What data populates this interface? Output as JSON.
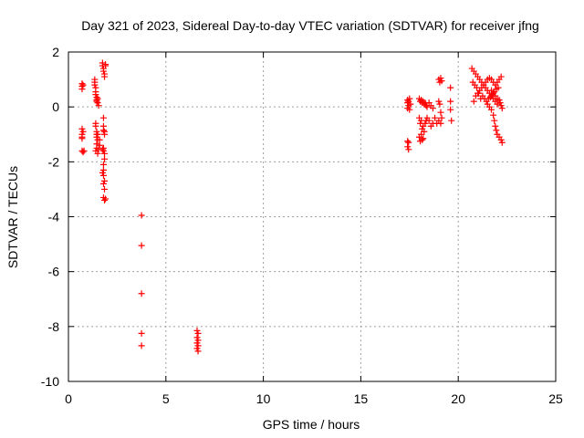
{
  "chart_data": {
    "type": "scatter",
    "title": "Day 321 of 2023, Sidereal Day-to-day VTEC variation (SDTVAR) for receiver jfng",
    "xlabel": "GPS time / hours",
    "ylabel": "SDTVAR / TECUs",
    "xlim": [
      0,
      25
    ],
    "ylim": [
      -10,
      2
    ],
    "xticks": [
      0,
      5,
      10,
      15,
      20,
      25
    ],
    "yticks": [
      -10,
      -8,
      -6,
      -4,
      -2,
      0,
      2
    ],
    "grid": true,
    "marker": "+",
    "color": "#ff0000",
    "series": [
      {
        "name": "SDTVAR",
        "points": [
          [
            0.7,
            0.85
          ],
          [
            0.7,
            0.75
          ],
          [
            0.7,
            0.65
          ],
          [
            0.75,
            0.8
          ],
          [
            0.7,
            -0.8
          ],
          [
            0.7,
            -1.0
          ],
          [
            0.7,
            -1.1
          ],
          [
            0.7,
            -1.15
          ],
          [
            0.75,
            -0.9
          ],
          [
            0.7,
            -1.6
          ],
          [
            0.75,
            -1.65
          ],
          [
            0.8,
            -1.6
          ],
          [
            1.35,
            1.0
          ],
          [
            1.35,
            0.9
          ],
          [
            1.35,
            0.8
          ],
          [
            1.4,
            0.7
          ],
          [
            1.4,
            0.55
          ],
          [
            1.4,
            0.45
          ],
          [
            1.45,
            0.35
          ],
          [
            1.45,
            0.25
          ],
          [
            1.45,
            0.2
          ],
          [
            1.5,
            0.3
          ],
          [
            1.5,
            0.15
          ],
          [
            1.55,
            0.05
          ],
          [
            1.4,
            -0.6
          ],
          [
            1.4,
            -0.7
          ],
          [
            1.45,
            -0.9
          ],
          [
            1.45,
            -1.0
          ],
          [
            1.45,
            -1.1
          ],
          [
            1.5,
            -1.0
          ],
          [
            1.5,
            -1.2
          ],
          [
            1.45,
            -1.35
          ],
          [
            1.45,
            -1.5
          ],
          [
            1.4,
            -1.6
          ],
          [
            1.5,
            -1.7
          ],
          [
            1.55,
            -1.55
          ],
          [
            1.6,
            -1.4
          ],
          [
            1.6,
            -1.2
          ],
          [
            1.75,
            1.6
          ],
          [
            1.75,
            1.5
          ],
          [
            1.8,
            1.4
          ],
          [
            1.8,
            1.3
          ],
          [
            1.85,
            1.2
          ],
          [
            1.85,
            1.1
          ],
          [
            1.9,
            1.5
          ],
          [
            1.9,
            1.55
          ],
          [
            1.8,
            -0.4
          ],
          [
            1.8,
            -0.7
          ],
          [
            1.8,
            -0.85
          ],
          [
            1.85,
            -0.9
          ],
          [
            1.85,
            -1.0
          ],
          [
            1.8,
            -1.5
          ],
          [
            1.75,
            -1.55
          ],
          [
            1.8,
            -1.6
          ],
          [
            1.85,
            -1.7
          ],
          [
            1.85,
            -1.9
          ],
          [
            1.8,
            -2.1
          ],
          [
            1.8,
            -2.3
          ],
          [
            1.75,
            -2.4
          ],
          [
            1.8,
            -2.5
          ],
          [
            1.85,
            -2.7
          ],
          [
            1.8,
            -2.8
          ],
          [
            1.85,
            -3.0
          ],
          [
            1.8,
            -3.3
          ],
          [
            1.85,
            -3.4
          ],
          [
            1.9,
            -3.35
          ],
          [
            3.75,
            -3.95
          ],
          [
            3.75,
            -5.05
          ],
          [
            3.75,
            -6.8
          ],
          [
            3.75,
            -8.25
          ],
          [
            3.75,
            -8.7
          ],
          [
            6.6,
            -8.15
          ],
          [
            6.65,
            -8.25
          ],
          [
            6.6,
            -8.4
          ],
          [
            6.65,
            -8.5
          ],
          [
            6.6,
            -8.6
          ],
          [
            6.65,
            -8.7
          ],
          [
            6.6,
            -8.8
          ],
          [
            6.65,
            -8.9
          ],
          [
            17.4,
            0.25
          ],
          [
            17.4,
            0.15
          ],
          [
            17.45,
            0.05
          ],
          [
            17.4,
            -0.05
          ],
          [
            17.5,
            -0.1
          ],
          [
            17.45,
            0.2
          ],
          [
            17.5,
            0.3
          ],
          [
            17.55,
            0.1
          ],
          [
            17.4,
            -1.25
          ],
          [
            17.45,
            -1.3
          ],
          [
            17.4,
            -1.45
          ],
          [
            17.45,
            -1.55
          ],
          [
            18.0,
            0.3
          ],
          [
            18.05,
            0.2
          ],
          [
            18.1,
            0.25
          ],
          [
            18.15,
            0.15
          ],
          [
            18.2,
            0.2
          ],
          [
            18.25,
            0.1
          ],
          [
            18.3,
            0.15
          ],
          [
            18.35,
            0.05
          ],
          [
            18.4,
            0.0
          ],
          [
            18.5,
            0.15
          ],
          [
            18.6,
            0.05
          ],
          [
            18.7,
            -0.05
          ],
          [
            18.0,
            -0.4
          ],
          [
            18.05,
            -0.6
          ],
          [
            18.1,
            -0.5
          ],
          [
            18.15,
            -0.8
          ],
          [
            18.2,
            -0.7
          ],
          [
            18.25,
            -0.9
          ],
          [
            18.3,
            -0.6
          ],
          [
            18.35,
            -0.5
          ],
          [
            18.4,
            -0.4
          ],
          [
            18.5,
            -0.5
          ],
          [
            18.6,
            -0.7
          ],
          [
            18.7,
            -0.6
          ],
          [
            18.8,
            -0.4
          ],
          [
            18.9,
            -0.6
          ],
          [
            18.0,
            -1.1
          ],
          [
            18.05,
            -1.25
          ],
          [
            18.1,
            -1.0
          ],
          [
            18.15,
            -1.2
          ],
          [
            18.2,
            -1.15
          ],
          [
            19.0,
            1.0
          ],
          [
            19.05,
            0.9
          ],
          [
            19.1,
            1.05
          ],
          [
            19.15,
            0.95
          ],
          [
            19.0,
            0.2
          ],
          [
            19.05,
            0.1
          ],
          [
            19.1,
            -0.2
          ],
          [
            19.15,
            -0.4
          ],
          [
            19.1,
            -0.6
          ],
          [
            19.0,
            -0.5
          ],
          [
            19.6,
            0.7
          ],
          [
            19.6,
            0.2
          ],
          [
            19.6,
            -0.1
          ],
          [
            19.65,
            -0.5
          ],
          [
            20.7,
            1.4
          ],
          [
            20.8,
            1.3
          ],
          [
            20.9,
            1.2
          ],
          [
            21.0,
            1.1
          ],
          [
            21.1,
            1.0
          ],
          [
            21.2,
            0.9
          ],
          [
            21.3,
            0.8
          ],
          [
            21.4,
            0.7
          ],
          [
            21.5,
            0.6
          ],
          [
            21.6,
            0.5
          ],
          [
            21.7,
            0.4
          ],
          [
            21.8,
            0.3
          ],
          [
            21.9,
            0.2
          ],
          [
            22.0,
            0.1
          ],
          [
            20.8,
            0.2
          ],
          [
            20.9,
            0.4
          ],
          [
            21.0,
            0.5
          ],
          [
            21.1,
            0.6
          ],
          [
            21.2,
            0.7
          ],
          [
            21.3,
            0.8
          ],
          [
            21.4,
            0.9
          ],
          [
            21.5,
            1.0
          ],
          [
            21.6,
            1.05
          ],
          [
            21.7,
            1.0
          ],
          [
            21.8,
            0.9
          ],
          [
            21.9,
            0.8
          ],
          [
            22.0,
            0.9
          ],
          [
            22.1,
            1.0
          ],
          [
            22.2,
            1.1
          ],
          [
            20.75,
            0.9
          ],
          [
            20.85,
            0.8
          ],
          [
            20.95,
            0.7
          ],
          [
            21.05,
            0.5
          ],
          [
            21.15,
            0.3
          ],
          [
            21.25,
            0.4
          ],
          [
            21.35,
            0.3
          ],
          [
            21.45,
            0.2
          ],
          [
            21.55,
            0.3
          ],
          [
            21.65,
            0.35
          ],
          [
            21.75,
            0.45
          ],
          [
            21.85,
            0.55
          ],
          [
            21.95,
            0.65
          ],
          [
            22.05,
            0.7
          ],
          [
            21.5,
            0.1
          ],
          [
            21.6,
            0.0
          ],
          [
            21.7,
            -0.1
          ],
          [
            21.8,
            -0.3
          ],
          [
            21.85,
            -0.5
          ],
          [
            21.9,
            -0.7
          ],
          [
            21.95,
            -0.85
          ],
          [
            22.0,
            -1.0
          ],
          [
            22.1,
            -1.1
          ],
          [
            22.2,
            -1.2
          ],
          [
            22.25,
            -1.3
          ],
          [
            21.7,
            0.6
          ],
          [
            21.8,
            0.5
          ],
          [
            21.9,
            0.4
          ],
          [
            22.0,
            0.3
          ],
          [
            22.1,
            0.25
          ],
          [
            22.15,
            0.15
          ],
          [
            22.2,
            0.05
          ],
          [
            22.25,
            -0.05
          ]
        ]
      }
    ]
  }
}
